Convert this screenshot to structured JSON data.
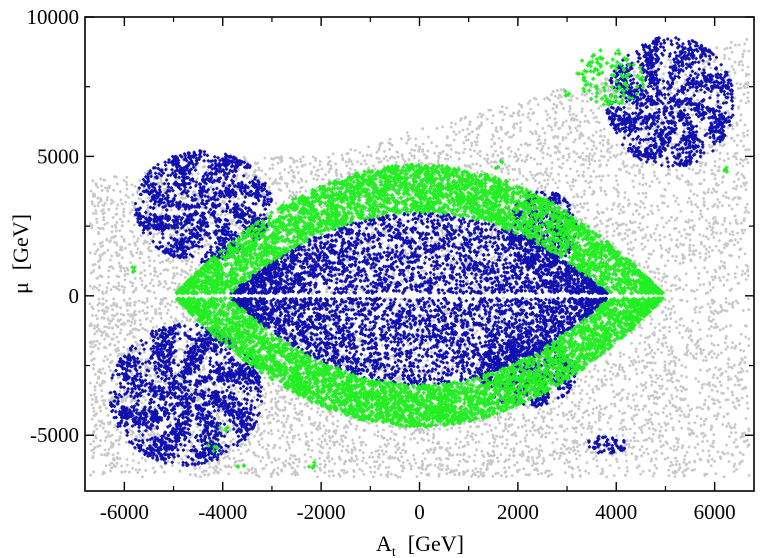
{
  "chart_data": {
    "type": "scatter",
    "title": "",
    "xlabel": {
      "main": "A",
      "sub": "t",
      "unit": "[GeV]"
    },
    "ylabel": {
      "main": "μ",
      "unit": "[GeV]"
    },
    "xlim": [
      -6800,
      6800
    ],
    "ylim": [
      -7000,
      10000
    ],
    "x_ticks": [
      -6000,
      -4000,
      -2000,
      0,
      2000,
      4000,
      6000
    ],
    "y_ticks": [
      -5000,
      0,
      5000,
      10000
    ],
    "grid": false,
    "legend": "none",
    "series": [
      {
        "color": "#c8c8c8",
        "description_regions": [
          {
            "shape": "band",
            "x": [
              -6700,
              6700
            ],
            "y": [
              -6500,
              5000
            ]
          },
          {
            "shape": "band",
            "x": [
              -2000,
              6700
            ],
            "y": [
              5000,
              9300
            ]
          }
        ]
      },
      {
        "color": "#1010b0",
        "regions": [
          {
            "shape": "lens",
            "cx": 0,
            "half_width": 3900,
            "y_top": 3000,
            "y_bottom": -3200
          },
          {
            "shape": "blob",
            "x": [
              -5800,
              -3000
            ],
            "y": [
              1200,
              5200
            ]
          },
          {
            "shape": "blob",
            "x": [
              -6300,
              -3200
            ],
            "y": [
              -6100,
              -1000
            ]
          },
          {
            "shape": "blob",
            "x": [
              3800,
              6400
            ],
            "y": [
              4600,
              9300
            ]
          },
          {
            "shape": "blob",
            "x": [
              1800,
              3200
            ],
            "y": [
              1000,
              3800
            ]
          },
          {
            "shape": "blob",
            "x": [
              1200,
              3200
            ],
            "y": [
              -4000,
              -1500
            ]
          },
          {
            "shape": "blob",
            "x": [
              3400,
              4200
            ],
            "y": [
              -5700,
              -5000
            ]
          }
        ]
      },
      {
        "color": "#22ee22",
        "regions": [
          {
            "shape": "lens_ring",
            "cx": 0,
            "half_width": 5000,
            "y_outer_top": 4700,
            "y_outer_bottom": -4700,
            "y_inner_top": 3000,
            "y_inner_bottom": -3200
          },
          {
            "shape": "blob",
            "x": [
              3200,
              4600
            ],
            "y": [
              6800,
              9000
            ]
          },
          {
            "shape": "scatter",
            "points": [
              [
                -5800,
                900
              ],
              [
                -4000,
                -4800
              ],
              [
                -3600,
                -6000
              ],
              [
                -2200,
                -6100
              ],
              [
                6300,
                4500
              ],
              [
                1600,
                4700
              ],
              [
                3000,
                7300
              ],
              [
                -4200,
                -5500
              ]
            ]
          }
        ]
      }
    ]
  }
}
